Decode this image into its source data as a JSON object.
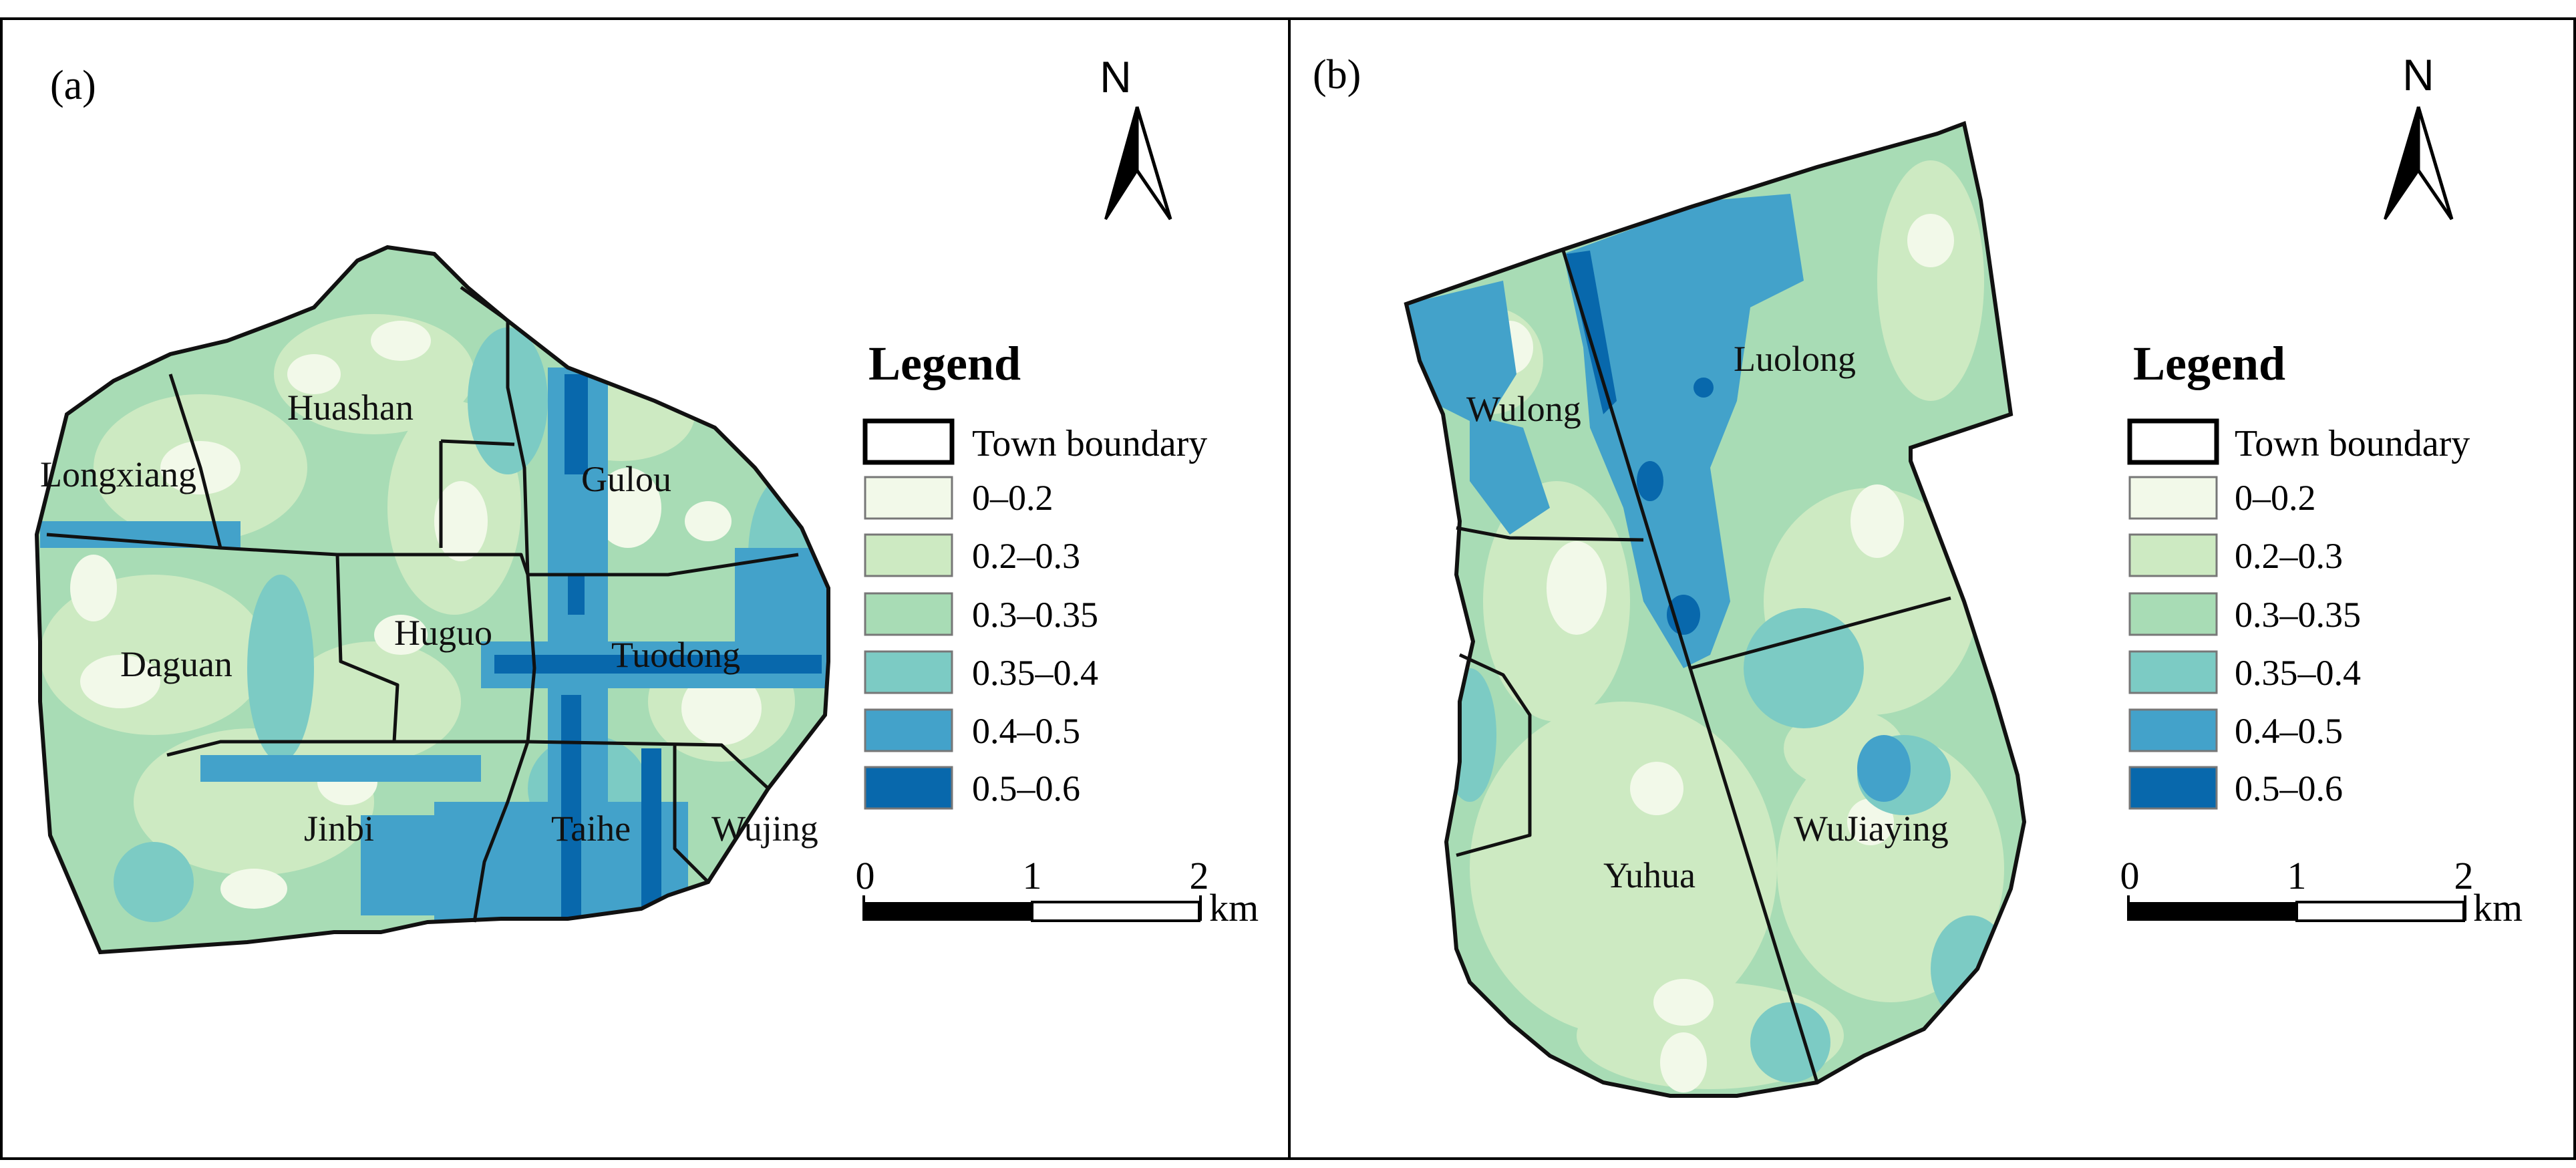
{
  "panels": [
    {
      "label": "(a)",
      "north": "N",
      "towns": [
        "Huashan",
        "Longxiang",
        "Gulou",
        "Huguo",
        "Daguan",
        "Tuodong",
        "Jinbi",
        "Taihe",
        "Wujing"
      ],
      "legend": {
        "title": "Legend",
        "boundary_label": "Town boundary",
        "classes": [
          {
            "label": "0–0.2",
            "color": "#f2f9e9"
          },
          {
            "label": "0.2–0.3",
            "color": "#cdeac2"
          },
          {
            "label": "0.3–0.35",
            "color": "#a8dcb5"
          },
          {
            "label": "0.35–0.4",
            "color": "#7ccbc4"
          },
          {
            "label": "0.4–0.5",
            "color": "#43a2ca"
          },
          {
            "label": "0.5–0.6",
            "color": "#0868ac"
          }
        ]
      },
      "scale": {
        "ticks": [
          "0",
          "1",
          "2"
        ],
        "unit": "km"
      }
    },
    {
      "label": "(b)",
      "north": "N",
      "towns": [
        "Wulong",
        "Luolong",
        "Yuhua",
        "WuJiaying"
      ],
      "legend": {
        "title": "Legend",
        "boundary_label": "Town boundary",
        "classes": [
          {
            "label": "0–0.2",
            "color": "#f2f9e9"
          },
          {
            "label": "0.2–0.3",
            "color": "#cdeac2"
          },
          {
            "label": "0.3–0.35",
            "color": "#a8dcb5"
          },
          {
            "label": "0.35–0.4",
            "color": "#7ccbc4"
          },
          {
            "label": "0.4–0.5",
            "color": "#43a2ca"
          },
          {
            "label": "0.5–0.6",
            "color": "#0868ac"
          }
        ]
      },
      "scale": {
        "ticks": [
          "0",
          "1",
          "2"
        ],
        "unit": "km"
      }
    }
  ],
  "colors": {
    "boundary": "#111111",
    "scale_bar": "#000000",
    "frame": "#000000"
  }
}
